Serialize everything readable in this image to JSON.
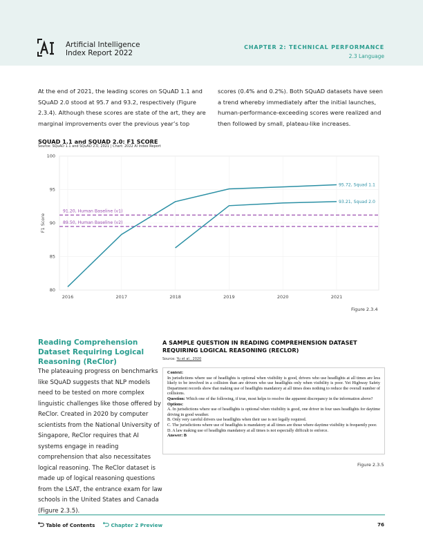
{
  "header": {
    "logo_icon": "ai-index-logo-icon",
    "report_line1": "Artificial Intelligence",
    "report_line2": "Index Report 2022",
    "chapter": "CHAPTER 2: TECHNICAL PERFORMANCE",
    "section": "2.3 Language"
  },
  "intro": {
    "left": "At the end of 2021, the leading scores on SQuAD 1.1 and SQuAD 2.0 stood at 95.7 and 93.2, respectively (Figure 2.3.4). Although these scores are state of the art, they are marginal improvements over the previous year’s top",
    "right": "scores (0.4% and 0.2%). Both SQuAD datasets have seen a trend whereby immediately after the initial launches, human-performance-exceeding scores were realized and then followed by small, plateau-like increases."
  },
  "figure1": {
    "title": "SQUAD 1.1 and SQUAD 2.0: F1 SCORE",
    "source": "Source: SQuAD 1.1 and SQuAD 2.0, 2021 | Chart: 2022 AI Index Report",
    "label": "Figure 2.3.4"
  },
  "chart_data": {
    "type": "line",
    "title": "SQUAD 1.1 and SQUAD 2.0: F1 SCORE",
    "ylabel": "F1 Score",
    "xlabel": "",
    "xlim": [
      2016,
      2021
    ],
    "ylim": [
      80,
      100
    ],
    "yticks": [
      80,
      85,
      90,
      95,
      100
    ],
    "xticks": [
      "2016",
      "2017",
      "2018",
      "2019",
      "2020",
      "2021"
    ],
    "grid": true,
    "series": [
      {
        "name": "Squad 1.1",
        "color": "#2a8fa4",
        "x": [
          2016.0,
          2017.0,
          2018.0,
          2019.0,
          2020.0,
          2021.0
        ],
        "y": [
          80.5,
          88.3,
          93.2,
          95.1,
          95.4,
          95.72
        ],
        "end_label": "95.72, Squad 1.1"
      },
      {
        "name": "Squad 2.0",
        "color": "#2a8fa4",
        "x": [
          2018.0,
          2019.0,
          2020.0,
          2021.0
        ],
        "y": [
          86.3,
          92.6,
          93.0,
          93.21
        ],
        "end_label": "93.21, Squad 2.0"
      }
    ],
    "baselines": [
      {
        "value": 91.2,
        "label": "91.20, Human Baseline (v1)",
        "color": "#9b4fb0"
      },
      {
        "value": 89.5,
        "label": "89.50, Human Baseline (v2)",
        "color": "#9b4fb0"
      }
    ]
  },
  "reclor": {
    "heading": "Reading Comprehension Dataset Requiring Logical Reasoning (ReClor)",
    "body": "The plateauing progress on benchmarks like SQuAD suggests that NLP models need to be tested on more complex linguistic challenges like those offered by ReClor. Created in 2020 by computer scientists from the National University of Singapore, ReClor requires that AI systems engage in reading comprehension that also necessitates logical reasoning. The ReClor dataset is made up of logical reasoning questions from the LSAT, the entrance exam for law schools in the United States and Canada (Figure 2.3.5)."
  },
  "sample": {
    "title": "A SAMPLE QUESTION IN READING COMPREHENSION DATASET REQUIRING LOGICAL REASONING (RECLOR)",
    "source_prefix": "Source: ",
    "source_link": "Yu et al., 2020",
    "context_label": "Context:",
    "context": "In jurisdictions where use of headlights is optional when visibility is good, drivers who use headlights at all times are less likely to be involved in a collision than are drivers who use headlights only when visibility is poor. Yet Highway Safety Department records show that making use of headlights mandatory at all times does nothing to reduce the overall number of collisions.",
    "question_label": "Question:",
    "question": "Which one of the following, if true, most helps to resolve the apparent discrepancy in the information above?",
    "options_label": "Options:",
    "options": [
      "A. In jurisdictions where use of headlights is optional when visibility is good, one driver in four uses headlights for daytime driving in good weather.",
      "B. Only very careful drivers use headlights when their use is not legally required.",
      "C. The jurisdictions where use of headlights is mandatory at all times are those where daytime visibility is frequently poor.",
      "D. A law making use of headlights mandatory at all times is not especially difficult to enforce."
    ],
    "answer_label": "Answer:",
    "answer": "B",
    "label": "Figure 2.3.5"
  },
  "footer": {
    "toc_icon": "return-arrow-icon",
    "toc": "Table of Contents",
    "preview": "Chapter 2 Preview",
    "page": "76"
  }
}
